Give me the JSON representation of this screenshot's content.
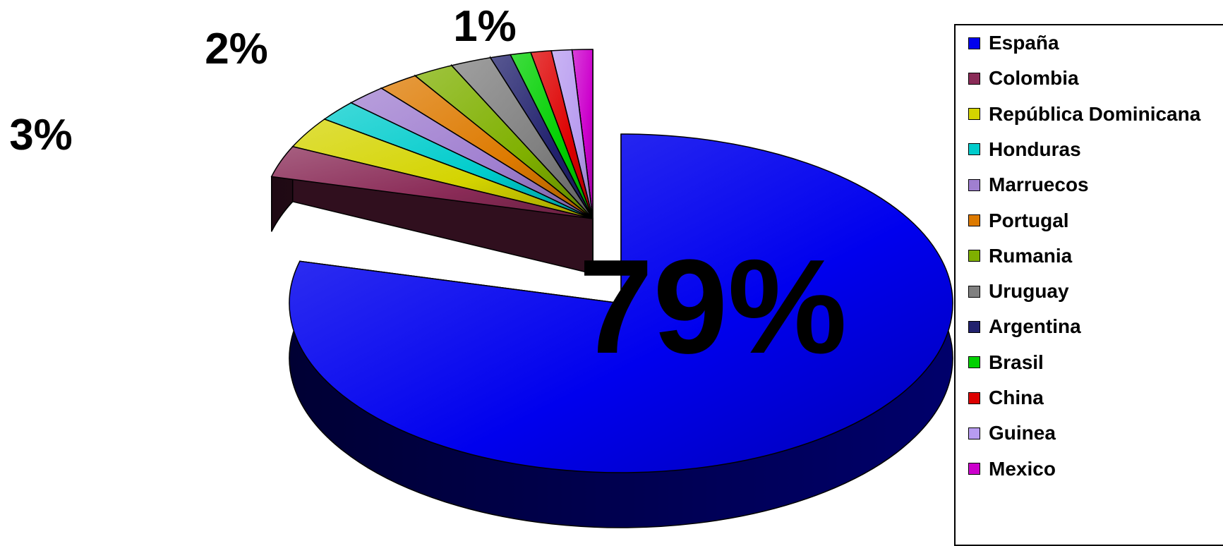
{
  "chart_data": {
    "type": "pie",
    "title": "",
    "labels": [
      "España",
      "Colombia",
      "República Dominicana",
      "Honduras",
      "Marruecos",
      "Portugal",
      "Rumania",
      "Uruguay",
      "Argentina",
      "Brasil",
      "China",
      "Guinea",
      "Mexico"
    ],
    "values": [
      79,
      3,
      3,
      2,
      2,
      2,
      2,
      2,
      1,
      1,
      1,
      1,
      1
    ],
    "colors": [
      "#0000ee",
      "#8a2b57",
      "#d4d400",
      "#00cccc",
      "#a07fd0",
      "#dd7a00",
      "#7fb000",
      "#808080",
      "#22226e",
      "#00d000",
      "#dd0000",
      "#b89cf0",
      "#cc00cc"
    ],
    "data_labels": [
      {
        "text": "79%",
        "slice": 0
      },
      {
        "text": "3%",
        "slice": 1
      },
      {
        "text": "2%",
        "slice": 3
      },
      {
        "text": "1%",
        "slice": 8
      }
    ],
    "legend_position": "right",
    "style": "3d-exploded"
  }
}
